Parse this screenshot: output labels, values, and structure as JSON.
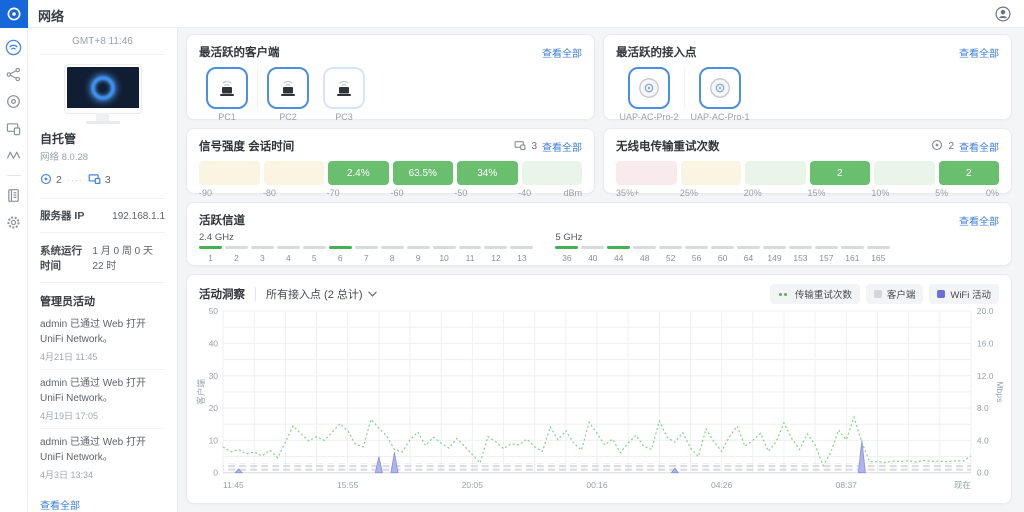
{
  "topbar": {
    "title": "网络"
  },
  "rail": {
    "items": [
      "wifi-dashboard",
      "topology",
      "radios",
      "devices",
      "insights",
      "journal",
      "settings"
    ]
  },
  "sidebar": {
    "clock": "GMT+8 11:46",
    "site_name": "自托管",
    "version": "网络 8.0.28",
    "ap_count": "2",
    "client_count": "3",
    "server_ip_label": "服务器 IP",
    "server_ip": "192.168.1.1",
    "uptime_label": "系统运行时间",
    "uptime": "1 月 0 周 0 天 22 时",
    "admin_activity_title": "管理员活动",
    "activities": [
      {
        "text": "admin 已通过 Web 打开 UniFi Network。",
        "date": "4月21日 11:45"
      },
      {
        "text": "admin 已通过 Web 打开 UniFi Network。",
        "date": "4月19日 17:05"
      },
      {
        "text": "admin 已通过 Web 打开 UniFi Network。",
        "date": "4月3日 13:34"
      }
    ],
    "view_all": "查看全部"
  },
  "cards": {
    "top_clients": {
      "title": "最活跃的客户端",
      "view_all": "查看全部",
      "clients": [
        {
          "name": "PC1",
          "highlight": true
        },
        {
          "name": "PC2",
          "highlight": true
        },
        {
          "name": "PC3",
          "highlight": false
        }
      ]
    },
    "top_aps": {
      "title": "最活跃的接入点",
      "view_all": "查看全部",
      "aps": [
        {
          "name": "UAP-AC-Pro-2"
        },
        {
          "name": "UAP-AC-Pro-1"
        }
      ]
    },
    "signal": {
      "title": "信号强度 会话时间",
      "count": "3",
      "view_all": "查看全部",
      "segments": [
        {
          "label": "",
          "color": "cream"
        },
        {
          "label": "",
          "color": "cream"
        },
        {
          "label": "2.4%",
          "color": "green"
        },
        {
          "label": "63.5%",
          "color": "green"
        },
        {
          "label": "34%",
          "color": "green"
        },
        {
          "label": "",
          "color": "lightgreen"
        }
      ],
      "ticks": [
        "-90",
        "-80",
        "-70",
        "-60",
        "-50",
        "-40",
        "dBm"
      ]
    },
    "retries": {
      "title": "无线电传输重试次数",
      "count": "2",
      "view_all": "查看全部",
      "segments": [
        {
          "label": "",
          "color": "pink"
        },
        {
          "label": "",
          "color": "cream"
        },
        {
          "label": "",
          "color": "lightgreen"
        },
        {
          "label": "2",
          "color": "green"
        },
        {
          "label": "",
          "color": "lightgreen"
        },
        {
          "label": "2",
          "color": "green"
        }
      ],
      "ticks": [
        "35%+",
        "25%",
        "20%",
        "15%",
        "10%",
        "5%",
        "0%"
      ]
    },
    "channels": {
      "title": "活跃信道",
      "view_all": "查看全部",
      "band24": {
        "label": "2.4 GHz",
        "channels": [
          {
            "n": "1",
            "active": true
          },
          {
            "n": "2",
            "active": false
          },
          {
            "n": "3",
            "active": false
          },
          {
            "n": "4",
            "active": false
          },
          {
            "n": "5",
            "active": false
          },
          {
            "n": "6",
            "active": true
          },
          {
            "n": "7",
            "active": false
          },
          {
            "n": "8",
            "active": false
          },
          {
            "n": "9",
            "active": false
          },
          {
            "n": "10",
            "active": false
          },
          {
            "n": "11",
            "active": false
          },
          {
            "n": "12",
            "active": false
          },
          {
            "n": "13",
            "active": false
          }
        ]
      },
      "band5": {
        "label": "5 GHz",
        "channels": [
          {
            "n": "36",
            "active": true
          },
          {
            "n": "40",
            "active": false
          },
          {
            "n": "44",
            "active": true
          },
          {
            "n": "48",
            "active": false
          },
          {
            "n": "52",
            "active": false
          },
          {
            "n": "56",
            "active": false
          },
          {
            "n": "60",
            "active": false
          },
          {
            "n": "64",
            "active": false
          },
          {
            "n": "149",
            "active": false
          },
          {
            "n": "153",
            "active": false
          },
          {
            "n": "157",
            "active": false
          },
          {
            "n": "161",
            "active": false
          },
          {
            "n": "165",
            "active": false
          }
        ]
      }
    },
    "insights": {
      "title": "活动洞察",
      "scope": "所有接入点 (2 总计)",
      "legend": [
        {
          "label": "传输重试次数",
          "type": "dots"
        },
        {
          "label": "客户端",
          "type": "gray"
        },
        {
          "label": "WiFi 活动",
          "type": "blue"
        }
      ]
    }
  },
  "chart_data": {
    "type": "line",
    "title": "活动洞察",
    "x_ticks": [
      "11:45",
      "15:55",
      "20:05",
      "00:16",
      "04:26",
      "08:37",
      "现在"
    ],
    "left_axis": {
      "label": "客户端",
      "ticks": [
        0,
        10,
        20,
        30,
        40,
        50
      ],
      "max": 50
    },
    "right_axis": {
      "label": "Mbps",
      "ticks": [
        "0.0",
        "4.0",
        "8.0",
        "12.0",
        "16.0",
        "20.0"
      ],
      "max": 20
    },
    "grid": true,
    "legend_position": "top-right",
    "series": [
      {
        "name": "传输重试次数",
        "style": "green-dotted-line",
        "values": [
          8,
          6.5,
          7.2,
          5.8,
          6.4,
          5.2,
          7,
          4.6,
          9.5,
          14.5,
          12,
          9.8,
          11.2,
          10,
          12.5,
          15.2,
          13,
          8.8,
          8,
          16.5,
          13.8,
          11.4,
          7.2,
          6.4,
          10.2,
          12.6,
          8.4,
          11,
          9.2,
          7.6,
          10.6,
          8.2,
          5.6,
          3,
          11.2,
          9.6,
          7.4,
          9,
          8.6,
          10.4,
          8,
          6.6,
          14.2,
          10.2,
          13,
          9.2,
          7,
          15.6,
          12.2,
          8.6,
          10.4,
          6.2,
          9.2,
          11.6,
          8.2,
          7.2,
          16,
          11,
          9.4,
          12.4,
          7.6,
          5,
          13.6,
          9.6,
          6.6,
          11.2,
          14.4,
          8.2,
          10,
          12.2,
          6.6,
          9.6,
          15.4,
          10.6,
          7.2,
          12,
          8.6,
          2.2,
          6.2,
          13.2,
          10.2,
          17.2,
          9.4,
          3.4,
          3.4,
          3.2,
          3.6,
          3.5,
          3.7,
          3.3,
          3.8,
          3.5,
          3.6,
          3.4,
          3.7,
          3.6,
          5.2
        ]
      },
      {
        "name": "客户端",
        "style": "gray-dashed-band",
        "constant_value": 3
      },
      {
        "name": "WiFi 活动",
        "style": "purple-area-spikes",
        "spikes": [
          {
            "i": 2,
            "v": 1.2
          },
          {
            "i": 20,
            "v": 5.0
          },
          {
            "i": 22,
            "v": 6.3
          },
          {
            "i": 58,
            "v": 1.4
          },
          {
            "i": 82,
            "v": 10
          }
        ]
      }
    ]
  },
  "colors": {
    "accent_blue": "#3e7fdd",
    "tile_border": "#4a8fe2",
    "bar_green": "#6abf6e",
    "bar_cream": "#faf4e2",
    "bar_pink": "#f9ebed",
    "bar_lightgreen": "#eaf5ea",
    "channel_green": "#45b054",
    "line_green": "#85d08a",
    "wifi_purple": "#8c90e0",
    "clients_gray": "#dadbe0",
    "logo_blue": "#1667d9"
  }
}
